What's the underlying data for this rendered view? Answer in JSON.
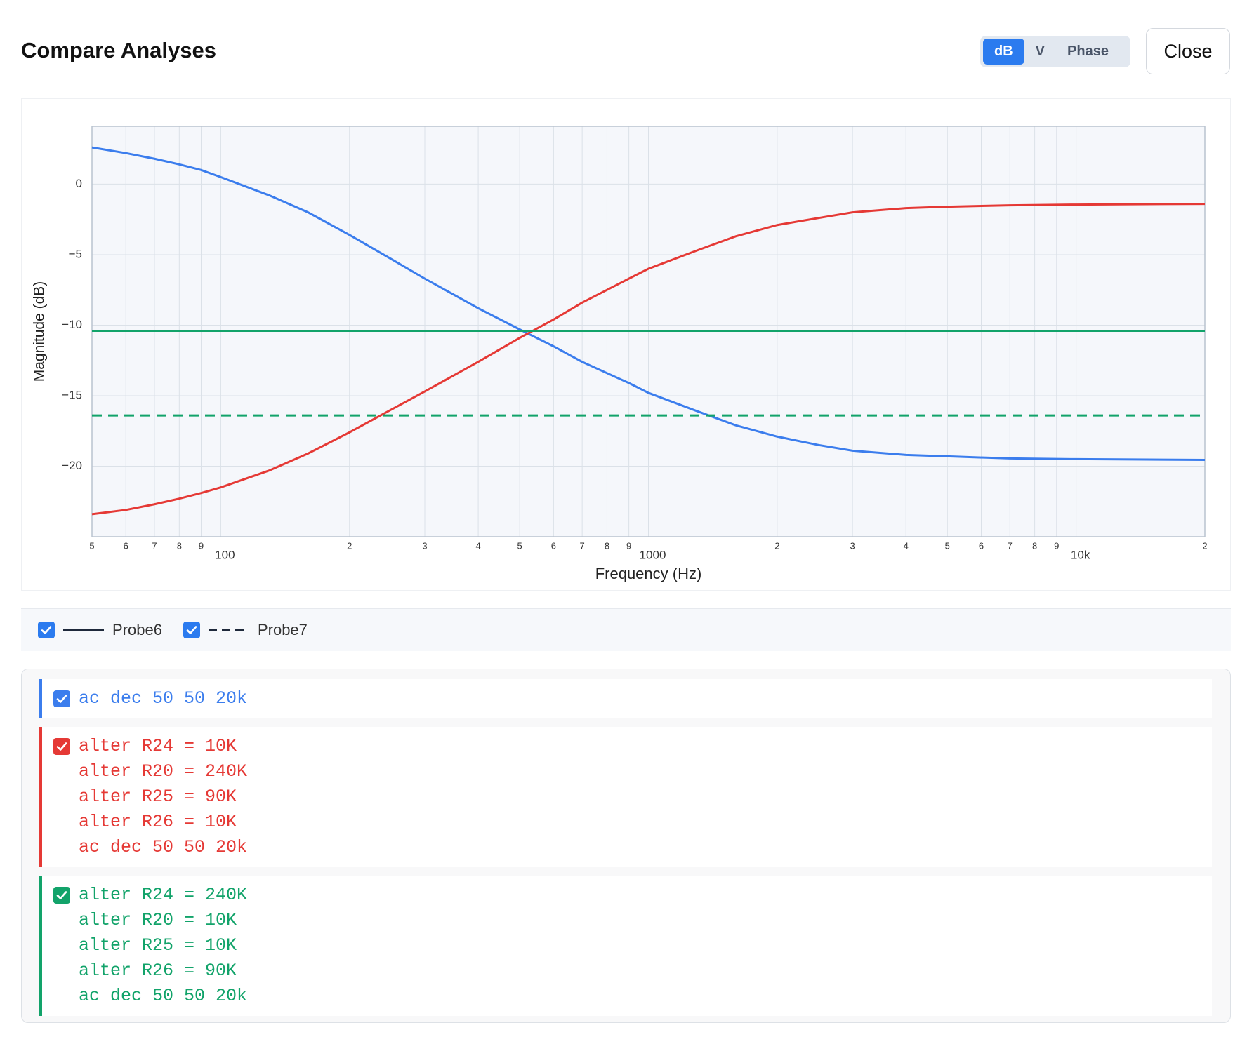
{
  "header": {
    "title": "Compare Analyses",
    "modes": [
      "dB",
      "V",
      "Phase"
    ],
    "close": "Close"
  },
  "chart_data": {
    "type": "line",
    "xlabel": "Frequency (Hz)",
    "ylabel": "Magnitude (dB)",
    "xscale": "log",
    "grid": true,
    "xlim": [
      50,
      20000
    ],
    "ylim": [
      -25,
      4.1
    ],
    "xticks": [
      {
        "value": 50,
        "label": "5"
      },
      {
        "value": 60,
        "label": "6"
      },
      {
        "value": 70,
        "label": "7"
      },
      {
        "value": 80,
        "label": "8"
      },
      {
        "value": 90,
        "label": "9"
      },
      100,
      {
        "value": 200,
        "label": "2"
      },
      {
        "value": 300,
        "label": "3"
      },
      {
        "value": 400,
        "label": "4"
      },
      {
        "value": 500,
        "label": "5"
      },
      {
        "value": 600,
        "label": "6"
      },
      {
        "value": 700,
        "label": "7"
      },
      {
        "value": 800,
        "label": "8"
      },
      {
        "value": 900,
        "label": "9"
      },
      1000,
      {
        "value": 2000,
        "label": "2"
      },
      {
        "value": 3000,
        "label": "3"
      },
      {
        "value": 4000,
        "label": "4"
      },
      {
        "value": 5000,
        "label": "5"
      },
      {
        "value": 6000,
        "label": "6"
      },
      {
        "value": 7000,
        "label": "7"
      },
      {
        "value": 8000,
        "label": "8"
      },
      {
        "value": 9000,
        "label": "9"
      },
      {
        "value": 10000,
        "label": "10k"
      },
      {
        "value": 20000,
        "label": "2"
      }
    ],
    "yticks": [
      0,
      {
        "value": -5,
        "label": "−5"
      },
      {
        "value": -10,
        "label": "−10"
      },
      {
        "value": -15,
        "label": "−15"
      },
      {
        "value": -20,
        "label": "−20"
      }
    ],
    "series": [
      {
        "color": "#3b7ded",
        "dash": false,
        "x": [
          50,
          60,
          70,
          80,
          90,
          100,
          130,
          160,
          200,
          250,
          300,
          400,
          500,
          600,
          700,
          800,
          900,
          1000,
          1300,
          1600,
          2000,
          2500,
          3000,
          4000,
          5000,
          7000,
          10000,
          20000
        ],
        "values": [
          2.6,
          2.2,
          1.8,
          1.4,
          1.0,
          0.5,
          -0.8,
          -2.0,
          -3.6,
          -5.3,
          -6.7,
          -8.8,
          -10.3,
          -11.5,
          -12.6,
          -13.4,
          -14.1,
          -14.8,
          -16.1,
          -17.1,
          -17.9,
          -18.5,
          -18.9,
          -19.2,
          -19.3,
          -19.45,
          -19.5,
          -19.55
        ]
      },
      {
        "color": "#e53935",
        "dash": false,
        "x": [
          50,
          60,
          70,
          80,
          90,
          100,
          130,
          160,
          200,
          250,
          300,
          400,
          500,
          600,
          700,
          800,
          900,
          1000,
          1300,
          1600,
          2000,
          2500,
          3000,
          4000,
          5000,
          7000,
          10000,
          20000
        ],
        "values": [
          -23.4,
          -23.1,
          -22.7,
          -22.3,
          -21.9,
          -21.5,
          -20.3,
          -19.1,
          -17.6,
          -16.0,
          -14.7,
          -12.6,
          -10.9,
          -9.6,
          -8.4,
          -7.5,
          -6.7,
          -6.0,
          -4.7,
          -3.7,
          -2.9,
          -2.4,
          -2.0,
          -1.7,
          -1.6,
          -1.5,
          -1.45,
          -1.4
        ]
      },
      {
        "color": "#12a36a",
        "dash": false,
        "x": [
          50,
          20000
        ],
        "values": [
          -10.4,
          -10.4
        ]
      },
      {
        "color": "#12a36a",
        "dash": true,
        "x": [
          50,
          20000
        ],
        "values": [
          -16.4,
          -16.4
        ]
      }
    ]
  },
  "legend": [
    "Probe6",
    "Probe7"
  ],
  "analyses": [
    {
      "color": "#3b7ded",
      "lines": [
        "ac dec 50 50 20k"
      ]
    },
    {
      "color": "#e53935",
      "lines": [
        "alter R24 = 10K",
        "alter R20 = 240K",
        "alter R25 = 90K",
        "alter R26 = 10K",
        "ac dec 50 50 20k"
      ]
    },
    {
      "color": "#12a36a",
      "lines": [
        "alter R24 = 240K",
        "alter R20 = 10K",
        "alter R25 = 10K",
        "alter R26 = 90K",
        "ac dec 50 50 20k"
      ]
    }
  ]
}
